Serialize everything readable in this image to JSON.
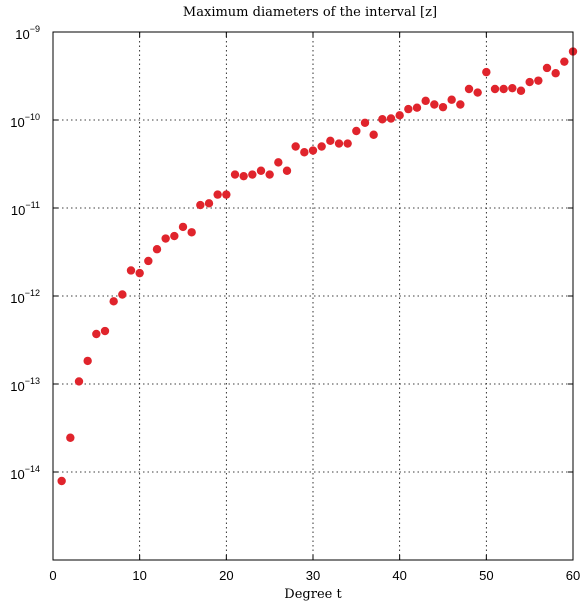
{
  "chart_data": {
    "type": "scatter",
    "title": "Maximum diameters of the interval [z]",
    "xlabel": "Degree t",
    "ylabel": "",
    "xlim": [
      0,
      60
    ],
    "ylim": [
      1e-15,
      1e-09
    ],
    "yscale": "log",
    "grid": true,
    "marker_color": "#e0242c",
    "x_ticks": [
      {
        "value": 0,
        "label": "0"
      },
      {
        "value": 10,
        "label": "10"
      },
      {
        "value": 20,
        "label": "20"
      },
      {
        "value": 30,
        "label": "30"
      },
      {
        "value": 40,
        "label": "40"
      },
      {
        "value": 50,
        "label": "50"
      },
      {
        "value": 60,
        "label": "60"
      }
    ],
    "y_ticks": [
      {
        "value": 1e-14,
        "base": "10",
        "exp": "−14"
      },
      {
        "value": 1e-13,
        "base": "10",
        "exp": "−13"
      },
      {
        "value": 1e-12,
        "base": "10",
        "exp": "−12"
      },
      {
        "value": 1e-11,
        "base": "10",
        "exp": "−11"
      },
      {
        "value": 1e-10,
        "base": "10",
        "exp": "−10"
      },
      {
        "value": 1e-09,
        "base": "10",
        "exp": "−9"
      }
    ],
    "x": [
      1,
      2,
      3,
      4,
      5,
      6,
      7,
      8,
      9,
      10,
      11,
      12,
      13,
      14,
      15,
      16,
      17,
      18,
      19,
      20,
      21,
      22,
      23,
      24,
      25,
      26,
      27,
      28,
      29,
      30,
      31,
      32,
      33,
      34,
      35,
      36,
      37,
      38,
      39,
      40,
      41,
      42,
      43,
      44,
      45,
      46,
      47,
      48,
      49,
      50,
      51,
      52,
      53,
      54,
      55,
      56,
      57,
      58,
      59,
      60
    ],
    "y": [
      7.9e-15,
      2.45e-14,
      1.07e-13,
      1.83e-13,
      3.7e-13,
      4e-13,
      8.7e-13,
      1.04e-12,
      1.95e-12,
      1.82e-12,
      2.5e-12,
      3.4e-12,
      4.5e-12,
      4.8e-12,
      6.1e-12,
      5.3e-12,
      1.08e-11,
      1.13e-11,
      1.42e-11,
      1.42e-11,
      2.4e-11,
      2.3e-11,
      2.4e-11,
      2.65e-11,
      2.4e-11,
      3.3e-11,
      2.65e-11,
      5e-11,
      4.3e-11,
      4.5e-11,
      5e-11,
      5.8e-11,
      5.4e-11,
      5.4e-11,
      7.5e-11,
      9.3e-11,
      6.8e-11,
      1.02e-10,
      1.04e-10,
      1.13e-10,
      1.33e-10,
      1.38e-10,
      1.65e-10,
      1.5e-10,
      1.4e-10,
      1.7e-10,
      1.5e-10,
      2.25e-10,
      2.05e-10,
      3.5e-10,
      2.25e-10,
      2.25e-10,
      2.3e-10,
      2.15e-10,
      2.7e-10,
      2.8e-10,
      3.9e-10,
      3.4e-10,
      4.6e-10,
      6e-10
    ]
  }
}
